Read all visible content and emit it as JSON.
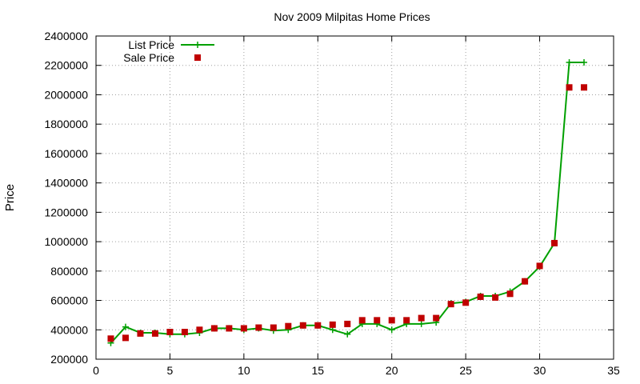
{
  "chart_data": {
    "type": "line",
    "title": "Nov 2009 Milpitas Home Prices",
    "xlabel": "",
    "ylabel": "Price",
    "xlim": [
      0,
      35
    ],
    "ylim": [
      200000,
      2400000
    ],
    "xticks": [
      0,
      5,
      10,
      15,
      20,
      25,
      30,
      35
    ],
    "yticks": [
      200000,
      400000,
      600000,
      800000,
      1000000,
      1200000,
      1400000,
      1600000,
      1800000,
      2000000,
      2200000,
      2400000
    ],
    "grid": true,
    "legend_position": "top-left",
    "series": [
      {
        "name": "List Price",
        "style": "lines+crosses",
        "color": "#00a000",
        "x": [
          1,
          2,
          3,
          4,
          5,
          6,
          7,
          8,
          9,
          10,
          11,
          12,
          13,
          14,
          15,
          16,
          17,
          18,
          19,
          20,
          21,
          22,
          23,
          24,
          25,
          26,
          27,
          28,
          29,
          30,
          31,
          32,
          33
        ],
        "y": [
          310000,
          420000,
          380000,
          380000,
          370000,
          370000,
          380000,
          410000,
          410000,
          400000,
          410000,
          395000,
          400000,
          430000,
          430000,
          400000,
          370000,
          440000,
          440000,
          400000,
          440000,
          440000,
          450000,
          580000,
          590000,
          630000,
          630000,
          660000,
          730000,
          830000,
          990000,
          2220000,
          2220000
        ]
      },
      {
        "name": "Sale Price",
        "style": "squares",
        "color": "#c00000",
        "x": [
          1,
          2,
          3,
          4,
          5,
          6,
          7,
          8,
          9,
          10,
          11,
          12,
          13,
          14,
          15,
          16,
          17,
          18,
          19,
          20,
          21,
          22,
          23,
          24,
          25,
          26,
          27,
          28,
          29,
          30,
          31,
          32,
          33
        ],
        "y": [
          340000,
          345000,
          375000,
          375000,
          385000,
          385000,
          400000,
          410000,
          410000,
          410000,
          415000,
          415000,
          425000,
          430000,
          430000,
          435000,
          440000,
          465000,
          465000,
          465000,
          465000,
          480000,
          480000,
          575000,
          585000,
          625000,
          620000,
          645000,
          730000,
          835000,
          990000,
          2050000,
          2050000
        ]
      }
    ]
  }
}
